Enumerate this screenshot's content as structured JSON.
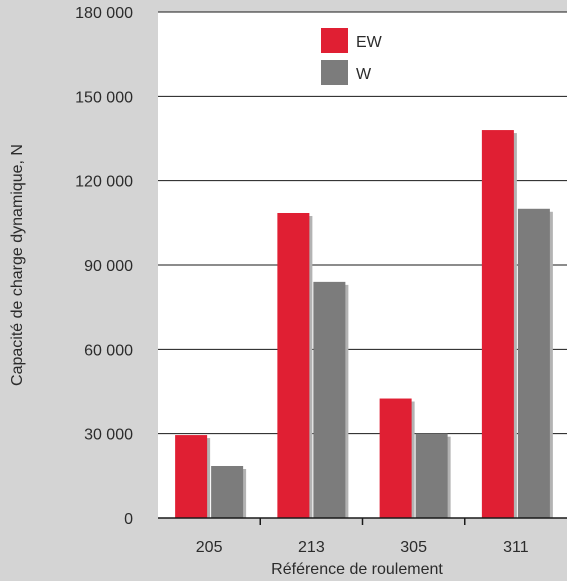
{
  "chart_data": {
    "type": "bar",
    "title": "",
    "xlabel": "Référence de roulement",
    "ylabel": "Capacité de charge dynamique, N",
    "categories": [
      "205",
      "213",
      "305",
      "311"
    ],
    "series": [
      {
        "name": "EW",
        "color": "#e01f33",
        "values": [
          29500,
          108500,
          42500,
          138000
        ]
      },
      {
        "name": "W",
        "color": "#7c7c7c",
        "values": [
          18500,
          84000,
          30000,
          110000
        ]
      }
    ],
    "ylim": [
      0,
      180000
    ],
    "yticks": [
      0,
      30000,
      60000,
      90000,
      120000,
      150000,
      180000
    ],
    "ytick_labels": [
      "0",
      "30 000",
      "60 000",
      "90 000",
      "120 000",
      "150 000",
      "180 000"
    ],
    "grid": true,
    "legend_position": "top-center",
    "background": "#d4d4d4",
    "plot_background": "#ffffff"
  }
}
